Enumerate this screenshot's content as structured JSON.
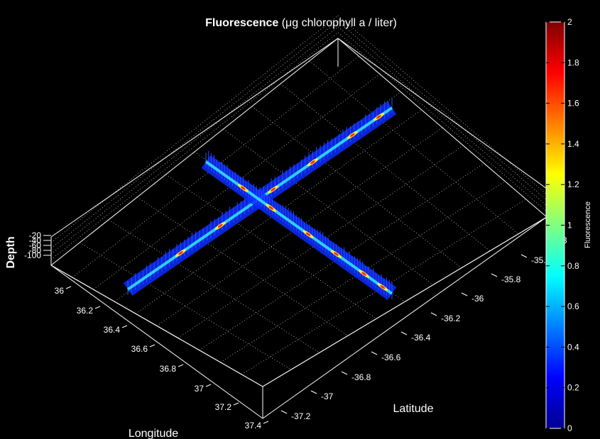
{
  "chart_data": {
    "type": "surface3d",
    "title_bold": "Fluorescence",
    "title_rest": " (μg chlorophyll a / liter)",
    "xlabel": "Longitude",
    "ylabel": "Latitude",
    "zlabel": "Depth",
    "longitude_ticks": [
      "36",
      "36.2",
      "36.4",
      "36.6",
      "36.8",
      "37",
      "37.2",
      "37.4"
    ],
    "latitude_ticks": [
      "-37.2",
      "-37",
      "-36.8",
      "-36.6",
      "-36.4",
      "-36.2",
      "-36",
      "-35.8",
      "-35.6",
      "-3"
    ],
    "depth_ticks": [
      "-20",
      "-40",
      "-60",
      "-80",
      "-100"
    ],
    "colorbar": {
      "label": "Fluorescence",
      "min": 0,
      "max": 2,
      "ticks": [
        "0",
        "0.2",
        "0.4",
        "0.6",
        "0.8",
        "1",
        "1.2",
        "1.4",
        "1.6",
        "1.8",
        "2"
      ]
    },
    "transects": [
      {
        "from": {
          "longitude": 36.0,
          "latitude": -35.9
        },
        "to": {
          "longitude": 36.5,
          "latitude": -34.7
        },
        "peak_fluorescence": 1.8
      },
      {
        "from": {
          "longitude": 35.9,
          "latitude": -36.9
        },
        "to": {
          "longitude": 37.0,
          "latitude": -35.9
        },
        "peak_fluorescence": 1.9
      }
    ],
    "grid": true,
    "colormap": "jet"
  }
}
